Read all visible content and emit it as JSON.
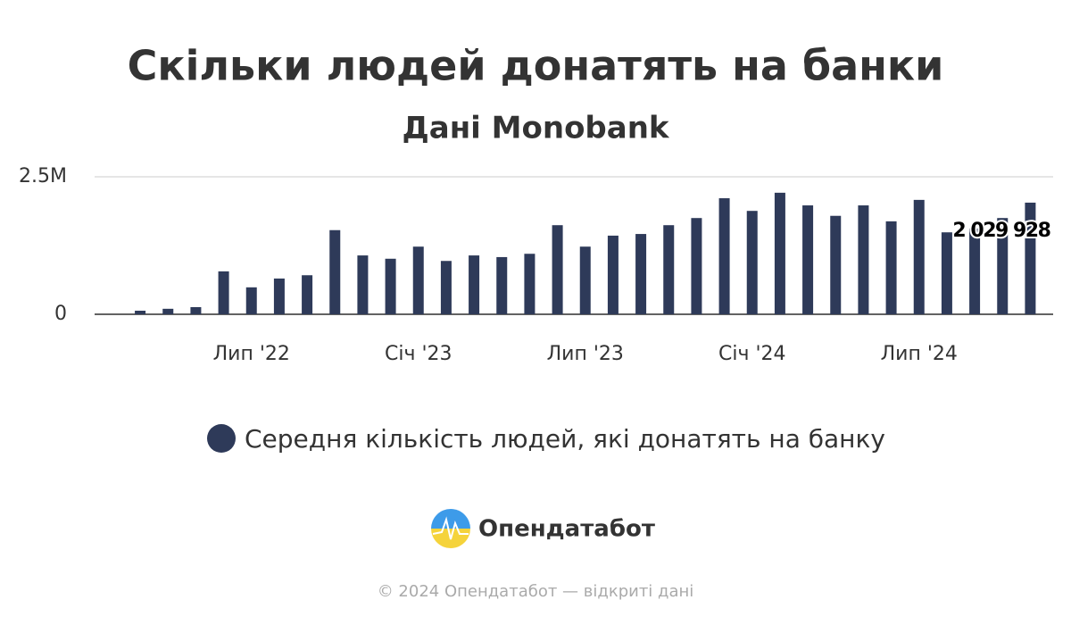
{
  "chart_data": {
    "type": "bar",
    "title": "Скільки людей донатять на банки",
    "subtitle": "Дані Monobank",
    "categories": [
      null,
      null,
      null,
      null,
      "Лип '22",
      null,
      null,
      null,
      null,
      null,
      "Січ '23",
      null,
      null,
      null,
      null,
      null,
      "Лип '23",
      null,
      null,
      null,
      null,
      null,
      "Січ '24",
      null,
      null,
      null,
      null,
      null,
      "Лип '24",
      null,
      null,
      null,
      null
    ],
    "series": [
      {
        "name": "Середня кількість людей, які донатять на банку",
        "color": "#2e3a59",
        "values": [
          65000,
          100000,
          130000,
          780000,
          490000,
          650000,
          710000,
          1530000,
          1070000,
          1010000,
          1230000,
          970000,
          1070000,
          1040000,
          1100000,
          1620000,
          1230000,
          1430000,
          1460000,
          1620000,
          1750000,
          2110000,
          1880000,
          2210000,
          1980000,
          1790000,
          1980000,
          1690000,
          2080000,
          1490000,
          1560000,
          1750000,
          2029928
        ],
        "value_labels": [
          null,
          null,
          null,
          null,
          null,
          null,
          null,
          null,
          null,
          null,
          null,
          null,
          null,
          null,
          null,
          null,
          null,
          null,
          null,
          null,
          null,
          null,
          null,
          null,
          null,
          null,
          null,
          null,
          null,
          null,
          null,
          null,
          "2 029 928"
        ]
      }
    ],
    "ylim": [
      0,
      2500000
    ],
    "yticks": [
      0,
      {
        "value": 2500000,
        "label": "2.5M"
      }
    ],
    "grid": true,
    "legend": "bottom"
  },
  "branding": {
    "logo_text": "Опендатабот",
    "footer": "© 2024 Опендатабот — відкриті дані"
  }
}
